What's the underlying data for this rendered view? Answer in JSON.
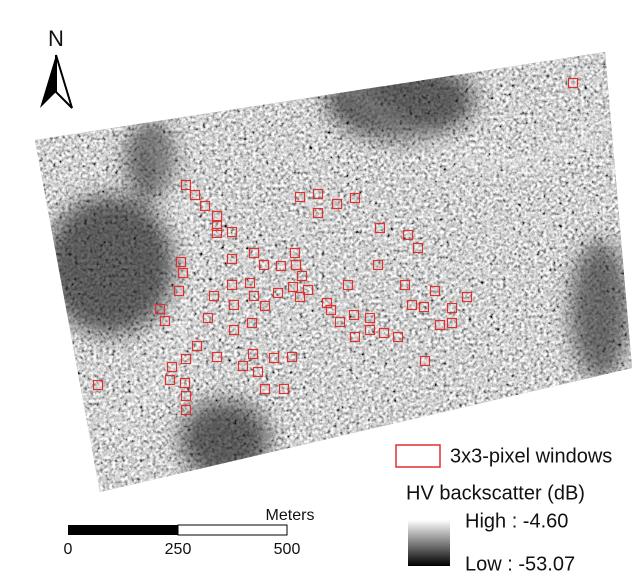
{
  "north_arrow": {
    "label": "N"
  },
  "legend": {
    "windows": "3x3-pixel windows",
    "title": "HV backscatter (dB)",
    "high": "High : -4.60",
    "low": "Low : -53.07"
  },
  "scale_bar": {
    "unit": "Meters",
    "labels": [
      "0",
      "250",
      "500"
    ]
  }
}
